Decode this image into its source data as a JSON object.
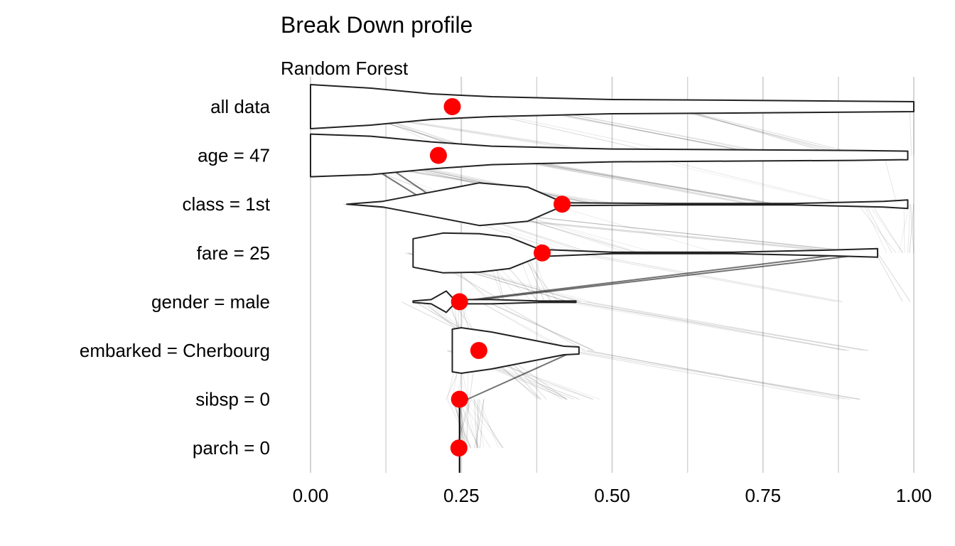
{
  "chart_data": {
    "type": "violin",
    "title": "Break Down profile",
    "subtitle": "Random Forest",
    "xlabel": "",
    "ylabel": "",
    "xlim": [
      0,
      1
    ],
    "x_ticks": [
      "0.00",
      "0.25",
      "0.50",
      "0.75",
      "1.00"
    ],
    "x_tick_values": [
      0,
      0.25,
      0.5,
      0.75,
      1.0
    ],
    "grid": true,
    "point_color": "#ff0000",
    "categories": [
      "all data",
      "age = 47",
      "class = 1st",
      "fare = 25",
      "gender = male",
      "embarked = Cherbourg",
      "sibsp = 0",
      "parch = 0"
    ],
    "mean_values": [
      0.235,
      0.212,
      0.417,
      0.384,
      0.247,
      0.279,
      0.247,
      0.246
    ]
  }
}
